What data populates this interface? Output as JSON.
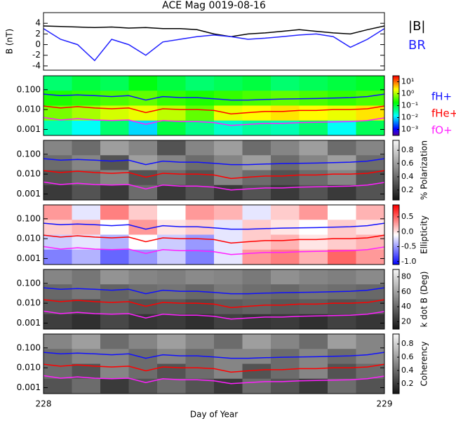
{
  "chart_data": [
    {
      "type": "line",
      "title": "ACE Mag 0019-08-16",
      "ylabel": "B (nT)",
      "xlim": [
        228,
        229
      ],
      "ylim": [
        -4.8,
        6
      ],
      "yticks": [
        -4,
        -2,
        0,
        2,
        4
      ],
      "x": [
        228,
        228.05,
        228.1,
        228.15,
        228.2,
        228.25,
        228.3,
        228.35,
        228.4,
        228.45,
        228.5,
        228.55,
        228.6,
        228.65,
        228.7,
        228.75,
        228.8,
        228.85,
        228.9,
        228.95,
        229
      ],
      "series": [
        {
          "name": "|B|",
          "color": "#000000",
          "values": [
            3.5,
            3.4,
            3.3,
            3.2,
            3.3,
            3.1,
            3.2,
            3.0,
            3.0,
            2.8,
            2.0,
            1.5,
            2.0,
            2.2,
            2.5,
            2.8,
            2.5,
            2.2,
            2.0,
            2.8,
            3.5
          ]
        },
        {
          "name": "BR",
          "color": "#2020ff",
          "values": [
            3.0,
            1.0,
            0.0,
            -3.0,
            1.0,
            0.0,
            -2.0,
            0.5,
            1.0,
            1.5,
            1.8,
            1.5,
            1.0,
            1.2,
            1.5,
            1.8,
            2.0,
            1.5,
            -0.5,
            1.0,
            3.0
          ]
        }
      ]
    },
    {
      "type": "heatmap",
      "colormap": "rainbow",
      "xlim": [
        228,
        229
      ],
      "ylim": [
        0.0005,
        0.5
      ],
      "log_y": true,
      "yticks": [
        {
          "value": 0.1,
          "label": "0.100"
        },
        {
          "value": 0.01,
          "label": "0.010"
        },
        {
          "value": 0.001,
          "label": "0.001"
        }
      ],
      "zlim": [
        -3.5,
        1.5
      ],
      "cticks": [
        {
          "value": 1,
          "label": "10¹"
        },
        {
          "value": 0,
          "label": "10⁰"
        },
        {
          "value": -1,
          "label": "10⁻¹"
        },
        {
          "value": -2,
          "label": "10⁻²"
        },
        {
          "value": -3,
          "label": "10⁻³"
        }
      ],
      "z": [
        [
          -1.2,
          -1.0,
          -1.1,
          -0.8,
          -1.0,
          -1.2,
          -1.1,
          -1.0,
          -1.2,
          -1.1,
          -1.0,
          -0.9
        ],
        [
          -0.6,
          -0.5,
          -0.4,
          -0.3,
          -0.5,
          -0.6,
          -0.5,
          -0.4,
          -0.3,
          -0.4,
          -0.5,
          -0.4
        ],
        [
          -0.2,
          0.0,
          0.2,
          0.3,
          0.1,
          -0.3,
          0.3,
          0.4,
          0.5,
          0.4,
          0.3,
          0.5
        ],
        [
          -1.5,
          -1.8,
          -1.2,
          -2.0,
          -1.0,
          -1.3,
          -1.6,
          -1.4,
          -1.5,
          -1.2,
          -1.8,
          -1.1
        ]
      ],
      "x": [
        228,
        228.05,
        228.1,
        228.15,
        228.2,
        228.25,
        228.3,
        228.35,
        228.4,
        228.45,
        228.5,
        228.55,
        228.6,
        228.65,
        228.7,
        228.75,
        228.8,
        228.85,
        228.9,
        228.95,
        229
      ],
      "series": [
        {
          "name": "fH+",
          "color": "#1010ff",
          "values": [
            0.06,
            0.05,
            0.055,
            0.05,
            0.045,
            0.05,
            0.03,
            0.045,
            0.04,
            0.04,
            0.035,
            0.03,
            0.03,
            0.032,
            0.034,
            0.035,
            0.036,
            0.038,
            0.04,
            0.045,
            0.06
          ]
        },
        {
          "name": "fHe+",
          "color": "#ff0000",
          "values": [
            0.015,
            0.012,
            0.014,
            0.012,
            0.011,
            0.012,
            0.007,
            0.011,
            0.01,
            0.01,
            0.009,
            0.006,
            0.007,
            0.008,
            0.008,
            0.009,
            0.009,
            0.01,
            0.01,
            0.011,
            0.015
          ]
        },
        {
          "name": "fO+",
          "color": "#ff20ff",
          "values": [
            0.004,
            0.003,
            0.0035,
            0.003,
            0.0028,
            0.003,
            0.0018,
            0.0028,
            0.0025,
            0.0025,
            0.0022,
            0.0016,
            0.0018,
            0.002,
            0.002,
            0.0022,
            0.0023,
            0.0024,
            0.0025,
            0.0028,
            0.0038
          ]
        }
      ]
    },
    {
      "type": "heatmap",
      "colormap": "gray",
      "colorbar_label": "% Polarization",
      "xlim": [
        228,
        229
      ],
      "ylim": [
        0.0005,
        0.5
      ],
      "log_y": true,
      "yticks": [
        {
          "value": 0.1,
          "label": "0.100"
        },
        {
          "value": 0.01,
          "label": "0.010"
        },
        {
          "value": 0.001,
          "label": "0.001"
        }
      ],
      "zlim": [
        0.05,
        0.95
      ],
      "cticks": [
        0.2,
        0.4,
        0.6,
        0.8
      ],
      "z": [
        [
          0.5,
          0.4,
          0.6,
          0.5,
          0.3,
          0.5,
          0.6,
          0.4,
          0.5,
          0.6,
          0.4,
          0.5
        ],
        [
          0.4,
          0.5,
          0.3,
          0.6,
          0.5,
          0.4,
          0.5,
          0.6,
          0.4,
          0.5,
          0.6,
          0.4
        ],
        [
          0.3,
          0.4,
          0.5,
          0.3,
          0.4,
          0.3,
          0.5,
          0.4,
          0.3,
          0.4,
          0.5,
          0.3
        ],
        [
          0.2,
          0.3,
          0.2,
          0.4,
          0.2,
          0.3,
          0.2,
          0.3,
          0.2,
          0.3,
          0.2,
          0.3
        ]
      ],
      "x": [
        228,
        228.05,
        228.1,
        228.15,
        228.2,
        228.25,
        228.3,
        228.35,
        228.4,
        228.45,
        228.5,
        228.55,
        228.6,
        228.65,
        228.7,
        228.75,
        228.8,
        228.85,
        228.9,
        228.95,
        229
      ],
      "series": [
        {
          "color": "#1010ff",
          "values": [
            0.06,
            0.05,
            0.055,
            0.05,
            0.045,
            0.05,
            0.03,
            0.045,
            0.04,
            0.04,
            0.035,
            0.03,
            0.03,
            0.032,
            0.034,
            0.035,
            0.036,
            0.038,
            0.04,
            0.045,
            0.06
          ]
        },
        {
          "color": "#ff0000",
          "values": [
            0.015,
            0.012,
            0.014,
            0.012,
            0.011,
            0.012,
            0.007,
            0.011,
            0.01,
            0.01,
            0.009,
            0.006,
            0.007,
            0.008,
            0.008,
            0.009,
            0.009,
            0.01,
            0.01,
            0.011,
            0.015
          ]
        },
        {
          "color": "#ff20ff",
          "values": [
            0.004,
            0.003,
            0.0035,
            0.003,
            0.0028,
            0.003,
            0.0018,
            0.0028,
            0.0025,
            0.0025,
            0.0022,
            0.0016,
            0.0018,
            0.002,
            0.002,
            0.0022,
            0.0023,
            0.0024,
            0.0025,
            0.0028,
            0.0038
          ]
        }
      ]
    },
    {
      "type": "heatmap",
      "colormap": "bwr",
      "colorbar_label": "Ellipticity",
      "xlim": [
        228,
        229
      ],
      "ylim": [
        0.0005,
        0.5
      ],
      "log_y": true,
      "yticks": [
        {
          "value": 0.1,
          "label": "0.100"
        },
        {
          "value": 0.01,
          "label": "0.010"
        },
        {
          "value": 0.001,
          "label": "0.001"
        }
      ],
      "zlim": [
        -1.1,
        0.9
      ],
      "cticks": [
        {
          "value": -1,
          "label": "-1.0"
        },
        -0.5,
        {
          "value": 0,
          "label": "0.0"
        },
        0.5
      ],
      "z": [
        [
          0.3,
          -0.2,
          0.4,
          0.1,
          -0.1,
          0.3,
          0.2,
          -0.2,
          0.1,
          0.3,
          -0.1,
          0.2
        ],
        [
          0.1,
          0.2,
          -0.1,
          0.3,
          0.0,
          0.1,
          -0.2,
          0.1,
          0.0,
          -0.1,
          0.1,
          0.0
        ],
        [
          -0.3,
          -0.2,
          -0.4,
          -0.1,
          -0.3,
          -0.5,
          -0.2,
          0.1,
          0.2,
          0.0,
          0.1,
          0.2
        ],
        [
          -0.6,
          -0.4,
          -0.7,
          -0.5,
          -0.3,
          -0.6,
          -0.2,
          0.3,
          0.4,
          0.2,
          0.5,
          0.3
        ]
      ],
      "x": [
        228,
        228.05,
        228.1,
        228.15,
        228.2,
        228.25,
        228.3,
        228.35,
        228.4,
        228.45,
        228.5,
        228.55,
        228.6,
        228.65,
        228.7,
        228.75,
        228.8,
        228.85,
        228.9,
        228.95,
        229
      ],
      "series": [
        {
          "color": "#1010ff",
          "values": [
            0.06,
            0.05,
            0.055,
            0.05,
            0.045,
            0.05,
            0.03,
            0.045,
            0.04,
            0.04,
            0.035,
            0.03,
            0.03,
            0.032,
            0.034,
            0.035,
            0.036,
            0.038,
            0.04,
            0.045,
            0.06
          ]
        },
        {
          "color": "#ff0000",
          "values": [
            0.015,
            0.012,
            0.014,
            0.012,
            0.011,
            0.012,
            0.007,
            0.011,
            0.01,
            0.01,
            0.009,
            0.006,
            0.007,
            0.008,
            0.008,
            0.009,
            0.009,
            0.01,
            0.01,
            0.011,
            0.015
          ]
        },
        {
          "color": "#ff20ff",
          "values": [
            0.004,
            0.003,
            0.0035,
            0.003,
            0.0028,
            0.003,
            0.0018,
            0.0028,
            0.0025,
            0.0025,
            0.0022,
            0.0016,
            0.0018,
            0.002,
            0.002,
            0.0022,
            0.0023,
            0.0024,
            0.0025,
            0.0028,
            0.0038
          ]
        }
      ]
    },
    {
      "type": "heatmap",
      "colormap": "gray",
      "colorbar_label": "k dot B (Deg)",
      "xlim": [
        228,
        229
      ],
      "ylim": [
        0.0005,
        0.5
      ],
      "log_y": true,
      "yticks": [
        {
          "value": 0.1,
          "label": "0.100"
        },
        {
          "value": 0.01,
          "label": "0.010"
        },
        {
          "value": 0.001,
          "label": "0.001"
        }
      ],
      "zlim": [
        10,
        90
      ],
      "cticks": [
        20,
        40,
        60,
        80
      ],
      "z": [
        [
          50,
          45,
          55,
          50,
          48,
          52,
          50,
          46,
          54,
          50,
          48,
          52
        ],
        [
          40,
          45,
          38,
          42,
          44,
          40,
          46,
          42,
          40,
          44,
          42,
          40
        ],
        [
          35,
          30,
          38,
          32,
          34,
          30,
          36,
          38,
          34,
          36,
          32,
          34
        ],
        [
          25,
          20,
          28,
          22,
          24,
          20,
          26,
          22,
          24,
          20,
          26,
          22
        ]
      ],
      "x": [
        228,
        228.05,
        228.1,
        228.15,
        228.2,
        228.25,
        228.3,
        228.35,
        228.4,
        228.45,
        228.5,
        228.55,
        228.6,
        228.65,
        228.7,
        228.75,
        228.8,
        228.85,
        228.9,
        228.95,
        229
      ],
      "series": [
        {
          "color": "#1010ff",
          "values": [
            0.06,
            0.05,
            0.055,
            0.05,
            0.045,
            0.05,
            0.03,
            0.045,
            0.04,
            0.04,
            0.035,
            0.03,
            0.03,
            0.032,
            0.034,
            0.035,
            0.036,
            0.038,
            0.04,
            0.045,
            0.06
          ]
        },
        {
          "color": "#ff0000",
          "values": [
            0.015,
            0.012,
            0.014,
            0.012,
            0.011,
            0.012,
            0.007,
            0.011,
            0.01,
            0.01,
            0.009,
            0.006,
            0.007,
            0.008,
            0.008,
            0.009,
            0.009,
            0.01,
            0.01,
            0.011,
            0.015
          ]
        },
        {
          "color": "#ff20ff",
          "values": [
            0.004,
            0.003,
            0.0035,
            0.003,
            0.0028,
            0.003,
            0.0018,
            0.0028,
            0.0025,
            0.0025,
            0.0022,
            0.0016,
            0.0018,
            0.002,
            0.002,
            0.0022,
            0.0023,
            0.0024,
            0.0025,
            0.0028,
            0.0038
          ]
        }
      ]
    },
    {
      "type": "heatmap",
      "colormap": "gray",
      "colorbar_label": "Coherency",
      "xlim": [
        228,
        229
      ],
      "ylim": [
        0.0005,
        0.5
      ],
      "log_y": true,
      "yticks": [
        {
          "value": 0.1,
          "label": "0.100"
        },
        {
          "value": 0.01,
          "label": "0.010"
        },
        {
          "value": 0.001,
          "label": "0.001"
        }
      ],
      "zlim": [
        0.05,
        0.95
      ],
      "cticks": [
        0.2,
        0.4,
        0.6,
        0.8
      ],
      "z": [
        [
          0.5,
          0.6,
          0.4,
          0.5,
          0.6,
          0.5,
          0.4,
          0.6,
          0.5,
          0.4,
          0.6,
          0.5
        ],
        [
          0.4,
          0.5,
          0.5,
          0.4,
          0.5,
          0.4,
          0.5,
          0.5,
          0.4,
          0.5,
          0.4,
          0.5
        ],
        [
          0.4,
          0.3,
          0.5,
          0.4,
          0.3,
          0.4,
          0.5,
          0.3,
          0.4,
          0.5,
          0.3,
          0.4
        ],
        [
          0.3,
          0.4,
          0.2,
          0.3,
          0.4,
          0.3,
          0.2,
          0.4,
          0.3,
          0.2,
          0.4,
          0.3
        ]
      ],
      "x": [
        228,
        228.05,
        228.1,
        228.15,
        228.2,
        228.25,
        228.3,
        228.35,
        228.4,
        228.45,
        228.5,
        228.55,
        228.6,
        228.65,
        228.7,
        228.75,
        228.8,
        228.85,
        228.9,
        228.95,
        229
      ],
      "series": [
        {
          "color": "#1010ff",
          "values": [
            0.06,
            0.05,
            0.055,
            0.05,
            0.045,
            0.05,
            0.03,
            0.045,
            0.04,
            0.04,
            0.035,
            0.03,
            0.03,
            0.032,
            0.034,
            0.035,
            0.036,
            0.038,
            0.04,
            0.045,
            0.06
          ]
        },
        {
          "color": "#ff0000",
          "values": [
            0.015,
            0.012,
            0.014,
            0.012,
            0.011,
            0.012,
            0.007,
            0.011,
            0.01,
            0.01,
            0.009,
            0.006,
            0.007,
            0.008,
            0.008,
            0.009,
            0.009,
            0.01,
            0.01,
            0.011,
            0.015
          ]
        },
        {
          "color": "#ff20ff",
          "values": [
            0.004,
            0.003,
            0.0035,
            0.003,
            0.0028,
            0.003,
            0.0018,
            0.0028,
            0.0025,
            0.0025,
            0.0022,
            0.0016,
            0.0018,
            0.002,
            0.002,
            0.0022,
            0.0023,
            0.0024,
            0.0025,
            0.0028,
            0.0038
          ]
        }
      ],
      "xticks": [
        228,
        229
      ],
      "xlabel": "Day of Year"
    }
  ]
}
